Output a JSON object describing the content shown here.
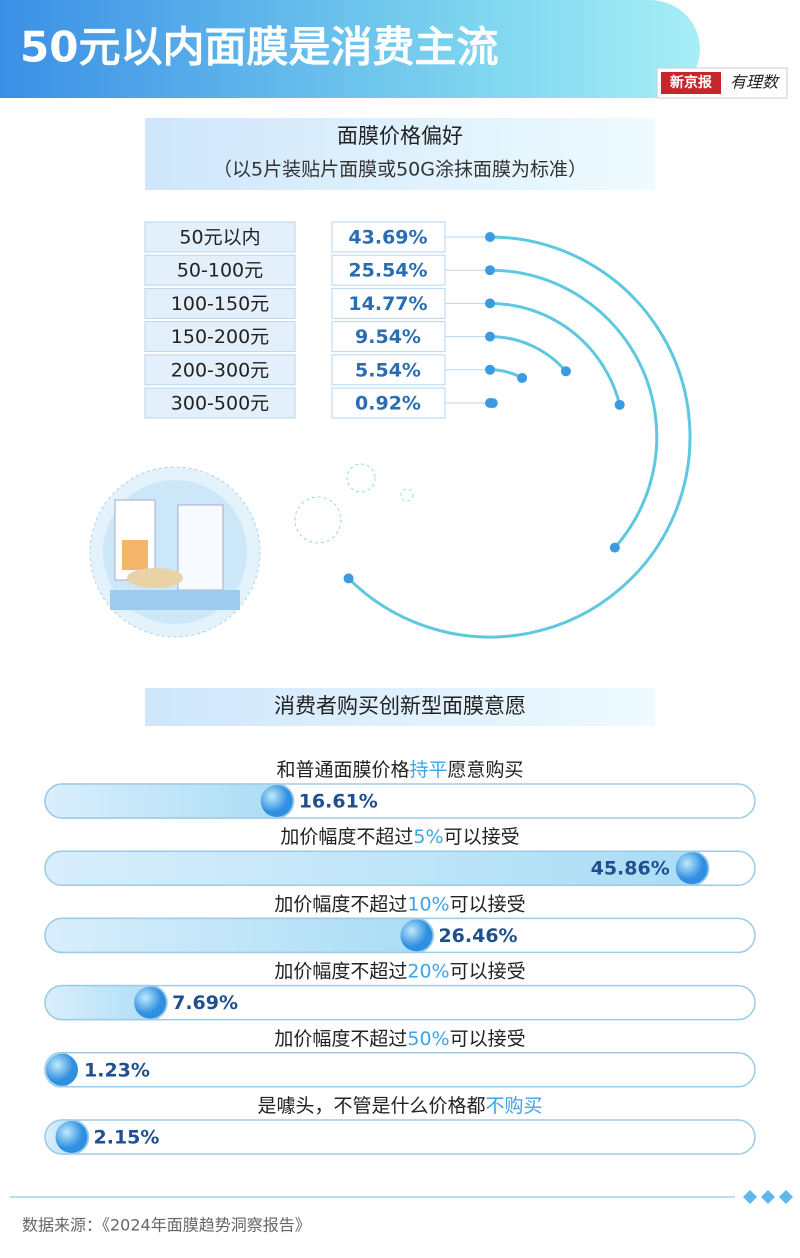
{
  "header": {
    "title": "50元以内面膜是消费主流",
    "logo": [
      "新京报",
      "有理数"
    ]
  },
  "chart_data": [
    {
      "type": "radial_bar",
      "title": "面膜价格偏好",
      "subtitle": "（以5片装贴片面膜或50G涂抹面膜为标准）",
      "categories": [
        "50元以内",
        "50-100元",
        "100-150元",
        "150-200元",
        "200-300元",
        "300-500元"
      ],
      "values": [
        43.69,
        25.54,
        14.77,
        9.54,
        5.54,
        0.92
      ],
      "value_labels": [
        "43.69%",
        "25.54%",
        "14.77%",
        "9.54%",
        "5.54%",
        "0.92%"
      ],
      "color": "#5ec8e0"
    },
    {
      "type": "hbar",
      "title": "消费者购买创新型面膜意愿",
      "categories": [
        [
          "和普通面膜价格",
          "持平",
          "愿意购买"
        ],
        [
          "加价幅度不超过",
          "5%",
          "可以接受"
        ],
        [
          "加价幅度不超过",
          "10%",
          "可以接受"
        ],
        [
          "加价幅度不超过",
          "20%",
          "可以接受"
        ],
        [
          "加价幅度不超过",
          "50%",
          "可以接受"
        ],
        [
          "是噱头，不管是什么价格都",
          "不购买",
          ""
        ]
      ],
      "values": [
        16.61,
        45.86,
        26.46,
        7.69,
        1.23,
        2.15
      ],
      "value_labels": [
        "16.61%",
        "45.86%",
        "26.46%",
        "7.69%",
        "1.23%",
        "2.15%"
      ],
      "color": "#3b9ae8",
      "highlight_color": "#3fa3e6"
    }
  ],
  "source": "数据来源：《2024年面膜趋势洞察报告》"
}
